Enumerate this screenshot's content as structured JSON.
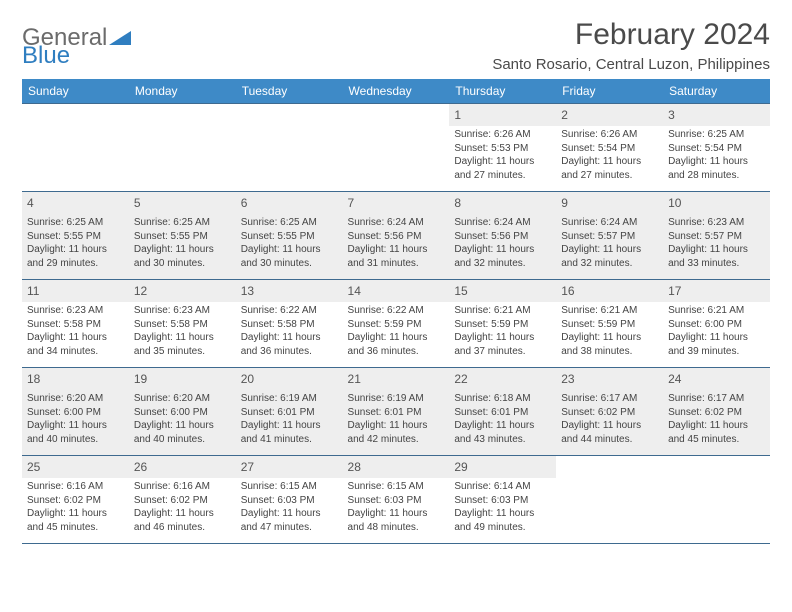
{
  "logo": {
    "general": "General",
    "blue": "Blue"
  },
  "title": "February 2024",
  "location": "Santo Rosario, Central Luzon, Philippines",
  "colors": {
    "header_bg": "#3e8ac7",
    "header_text": "#ffffff",
    "row_border": "#3e6a8f",
    "alt_row_bg": "#eeeeee",
    "logo_gray": "#6b6b6b",
    "logo_blue": "#2f7ec0",
    "text": "#333333"
  },
  "fonts": {
    "title_size": 30,
    "location_size": 15,
    "weekday_size": 12,
    "daynum_size": 12,
    "body_size": 10
  },
  "weekdays": [
    "Sunday",
    "Monday",
    "Tuesday",
    "Wednesday",
    "Thursday",
    "Friday",
    "Saturday"
  ],
  "first_day_index": 4,
  "days": [
    {
      "n": 1,
      "sunrise": "6:26 AM",
      "sunset": "5:53 PM",
      "daylight": "11 hours and 27 minutes."
    },
    {
      "n": 2,
      "sunrise": "6:26 AM",
      "sunset": "5:54 PM",
      "daylight": "11 hours and 27 minutes."
    },
    {
      "n": 3,
      "sunrise": "6:25 AM",
      "sunset": "5:54 PM",
      "daylight": "11 hours and 28 minutes."
    },
    {
      "n": 4,
      "sunrise": "6:25 AM",
      "sunset": "5:55 PM",
      "daylight": "11 hours and 29 minutes."
    },
    {
      "n": 5,
      "sunrise": "6:25 AM",
      "sunset": "5:55 PM",
      "daylight": "11 hours and 30 minutes."
    },
    {
      "n": 6,
      "sunrise": "6:25 AM",
      "sunset": "5:55 PM",
      "daylight": "11 hours and 30 minutes."
    },
    {
      "n": 7,
      "sunrise": "6:24 AM",
      "sunset": "5:56 PM",
      "daylight": "11 hours and 31 minutes."
    },
    {
      "n": 8,
      "sunrise": "6:24 AM",
      "sunset": "5:56 PM",
      "daylight": "11 hours and 32 minutes."
    },
    {
      "n": 9,
      "sunrise": "6:24 AM",
      "sunset": "5:57 PM",
      "daylight": "11 hours and 32 minutes."
    },
    {
      "n": 10,
      "sunrise": "6:23 AM",
      "sunset": "5:57 PM",
      "daylight": "11 hours and 33 minutes."
    },
    {
      "n": 11,
      "sunrise": "6:23 AM",
      "sunset": "5:58 PM",
      "daylight": "11 hours and 34 minutes."
    },
    {
      "n": 12,
      "sunrise": "6:23 AM",
      "sunset": "5:58 PM",
      "daylight": "11 hours and 35 minutes."
    },
    {
      "n": 13,
      "sunrise": "6:22 AM",
      "sunset": "5:58 PM",
      "daylight": "11 hours and 36 minutes."
    },
    {
      "n": 14,
      "sunrise": "6:22 AM",
      "sunset": "5:59 PM",
      "daylight": "11 hours and 36 minutes."
    },
    {
      "n": 15,
      "sunrise": "6:21 AM",
      "sunset": "5:59 PM",
      "daylight": "11 hours and 37 minutes."
    },
    {
      "n": 16,
      "sunrise": "6:21 AM",
      "sunset": "5:59 PM",
      "daylight": "11 hours and 38 minutes."
    },
    {
      "n": 17,
      "sunrise": "6:21 AM",
      "sunset": "6:00 PM",
      "daylight": "11 hours and 39 minutes."
    },
    {
      "n": 18,
      "sunrise": "6:20 AM",
      "sunset": "6:00 PM",
      "daylight": "11 hours and 40 minutes."
    },
    {
      "n": 19,
      "sunrise": "6:20 AM",
      "sunset": "6:00 PM",
      "daylight": "11 hours and 40 minutes."
    },
    {
      "n": 20,
      "sunrise": "6:19 AM",
      "sunset": "6:01 PM",
      "daylight": "11 hours and 41 minutes."
    },
    {
      "n": 21,
      "sunrise": "6:19 AM",
      "sunset": "6:01 PM",
      "daylight": "11 hours and 42 minutes."
    },
    {
      "n": 22,
      "sunrise": "6:18 AM",
      "sunset": "6:01 PM",
      "daylight": "11 hours and 43 minutes."
    },
    {
      "n": 23,
      "sunrise": "6:17 AM",
      "sunset": "6:02 PM",
      "daylight": "11 hours and 44 minutes."
    },
    {
      "n": 24,
      "sunrise": "6:17 AM",
      "sunset": "6:02 PM",
      "daylight": "11 hours and 45 minutes."
    },
    {
      "n": 25,
      "sunrise": "6:16 AM",
      "sunset": "6:02 PM",
      "daylight": "11 hours and 45 minutes."
    },
    {
      "n": 26,
      "sunrise": "6:16 AM",
      "sunset": "6:02 PM",
      "daylight": "11 hours and 46 minutes."
    },
    {
      "n": 27,
      "sunrise": "6:15 AM",
      "sunset": "6:03 PM",
      "daylight": "11 hours and 47 minutes."
    },
    {
      "n": 28,
      "sunrise": "6:15 AM",
      "sunset": "6:03 PM",
      "daylight": "11 hours and 48 minutes."
    },
    {
      "n": 29,
      "sunrise": "6:14 AM",
      "sunset": "6:03 PM",
      "daylight": "11 hours and 49 minutes."
    }
  ],
  "labels": {
    "sunrise": "Sunrise:",
    "sunset": "Sunset:",
    "daylight": "Daylight:"
  }
}
